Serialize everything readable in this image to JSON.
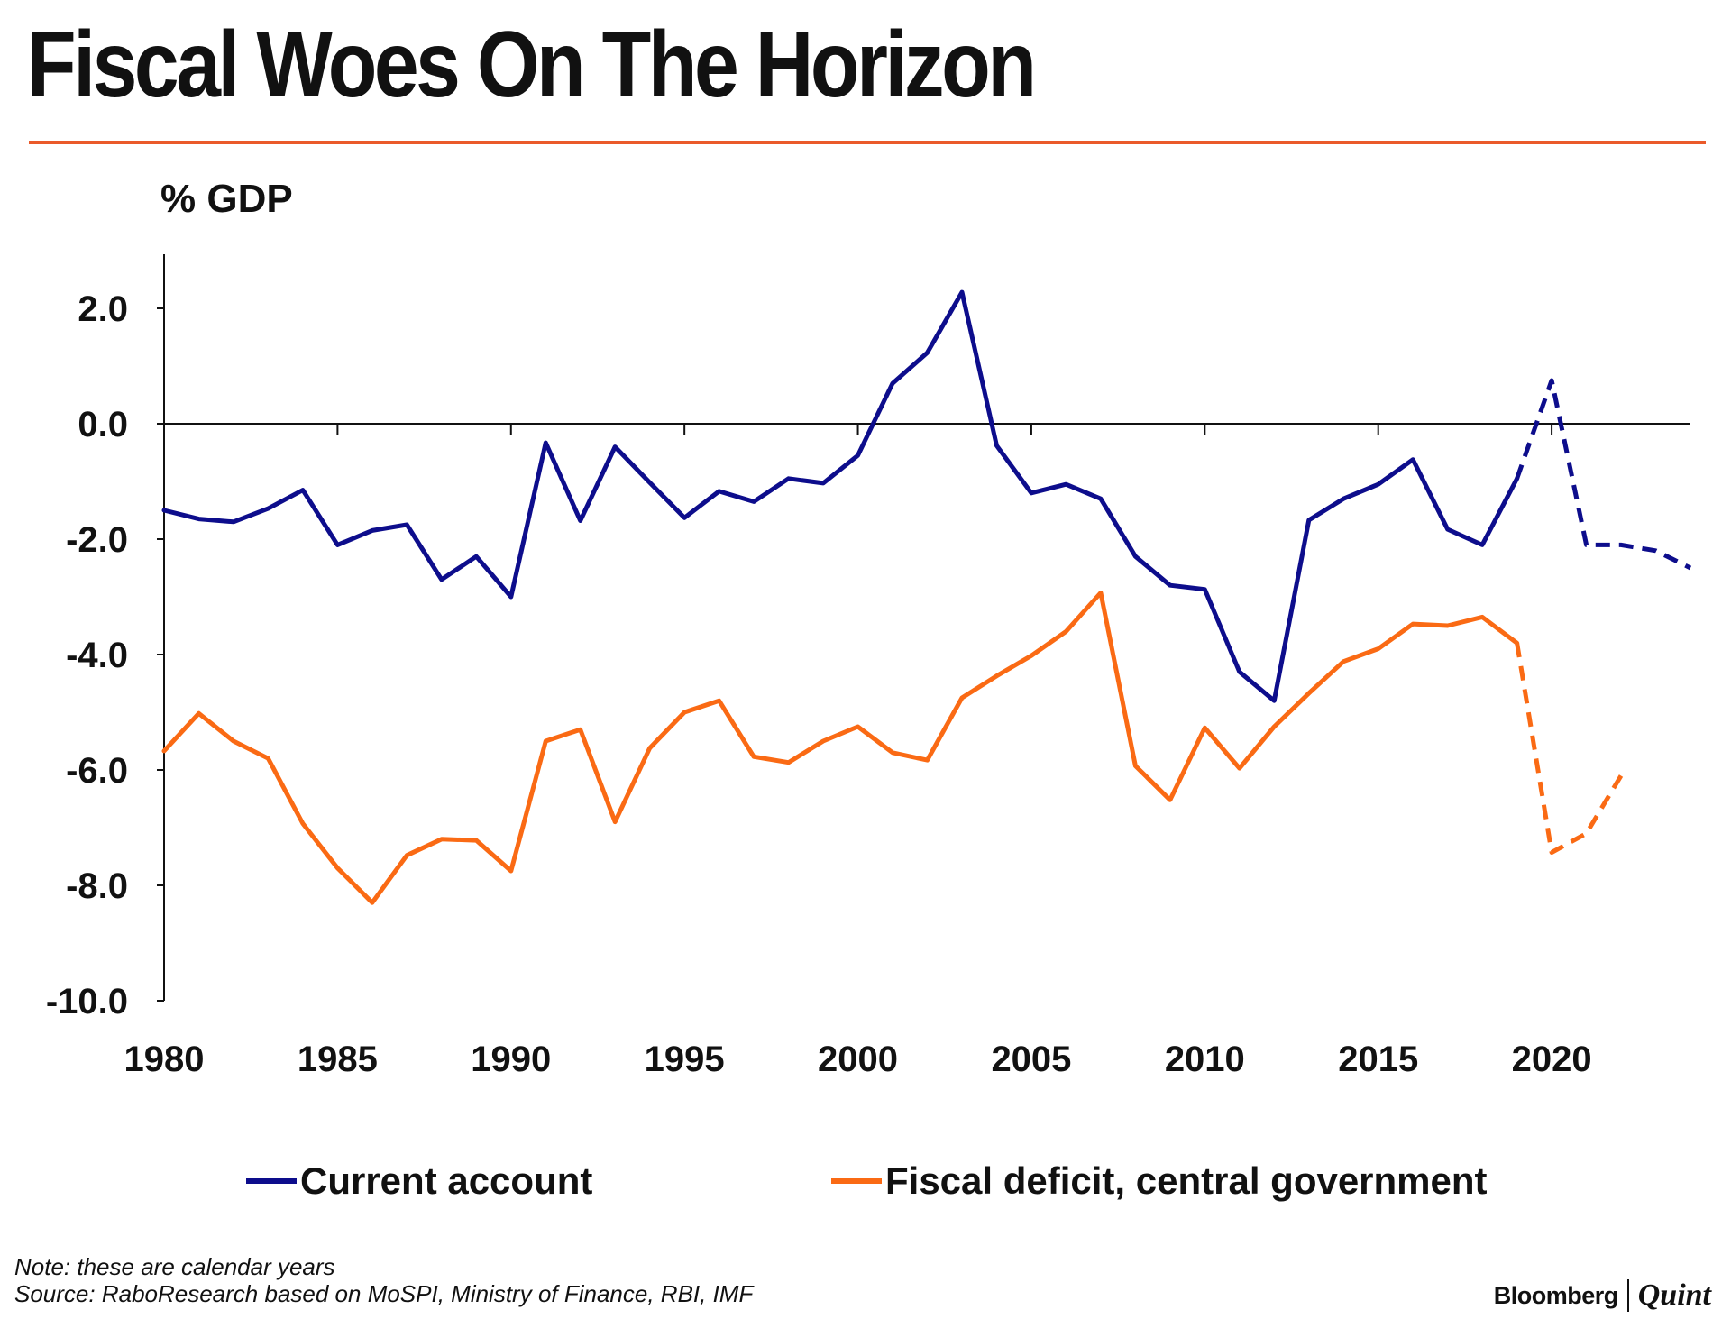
{
  "title": "Fiscal Woes On The Horizon",
  "colors": {
    "accent_rule": "#ea5a2a",
    "current_account": "#0d0d8c",
    "fiscal_deficit": "#fa6a14",
    "axis": "#111111"
  },
  "chart_data": {
    "type": "line",
    "title": "Fiscal Woes On The Horizon",
    "ylabel": "% GDP",
    "xlabel": "",
    "ylim": [
      -10.0,
      3.0
    ],
    "xlim": [
      1980,
      2024
    ],
    "yticks": [
      "2.0",
      "0.0",
      "-2.0",
      "-4.0",
      "-6.0",
      "-8.0",
      "-10.0"
    ],
    "ytick_values": [
      2,
      0,
      -2,
      -4,
      -6,
      -8,
      -10
    ],
    "xticks": [
      "1980",
      "1985",
      "1990",
      "1995",
      "2000",
      "2005",
      "2010",
      "2015",
      "2020"
    ],
    "xtick_values": [
      1980,
      1985,
      1990,
      1995,
      2000,
      2005,
      2010,
      2015,
      2020
    ],
    "grid": false,
    "legend_position": "bottom",
    "series": [
      {
        "name": "Current account",
        "color": "#0d0d8c",
        "actual": {
          "x": [
            1980,
            1981,
            1982,
            1983,
            1984,
            1985,
            1986,
            1987,
            1988,
            1989,
            1990,
            1991,
            1992,
            1993,
            1994,
            1995,
            1996,
            1997,
            1998,
            1999,
            2000,
            2001,
            2002,
            2003,
            2004,
            2005,
            2006,
            2007,
            2008,
            2009,
            2010,
            2011,
            2012,
            2013,
            2014,
            2015,
            2016,
            2017,
            2018,
            2019
          ],
          "y": [
            -1.5,
            -1.65,
            -1.7,
            -1.47,
            -1.15,
            -2.1,
            -1.85,
            -1.75,
            -2.7,
            -2.3,
            -3.0,
            -0.33,
            -1.68,
            -0.4,
            -1.02,
            -1.63,
            -1.17,
            -1.35,
            -0.95,
            -1.03,
            -0.55,
            0.7,
            1.23,
            2.28,
            -0.38,
            -1.2,
            -1.05,
            -1.3,
            -2.3,
            -2.8,
            -2.87,
            -4.3,
            -4.8,
            -1.67,
            -1.3,
            -1.05,
            -0.62,
            -1.83,
            -2.1,
            -0.95
          ]
        },
        "projected": {
          "x": [
            2019,
            2020,
            2021,
            2022,
            2023,
            2024
          ],
          "y": [
            -0.95,
            0.75,
            -2.1,
            -2.1,
            -2.2,
            -2.5
          ]
        }
      },
      {
        "name": "Fiscal deficit, central government",
        "color": "#fa6a14",
        "actual": {
          "x": [
            1980,
            1981,
            1982,
            1983,
            1984,
            1985,
            1986,
            1987,
            1988,
            1989,
            1990,
            1991,
            1992,
            1993,
            1994,
            1995,
            1996,
            1997,
            1998,
            1999,
            2000,
            2001,
            2002,
            2003,
            2004,
            2005,
            2006,
            2007,
            2008,
            2009,
            2010,
            2011,
            2012,
            2013,
            2014,
            2015,
            2016,
            2017,
            2018,
            2019
          ],
          "y": [
            -5.67,
            -5.02,
            -5.5,
            -5.8,
            -6.93,
            -7.7,
            -8.3,
            -7.48,
            -7.2,
            -7.22,
            -7.75,
            -5.5,
            -5.3,
            -6.9,
            -5.62,
            -5.0,
            -4.8,
            -5.77,
            -5.87,
            -5.5,
            -5.25,
            -5.7,
            -5.83,
            -4.75,
            -4.37,
            -4.02,
            -3.6,
            -2.93,
            -5.93,
            -6.52,
            -5.27,
            -5.97,
            -5.25,
            -4.67,
            -4.12,
            -3.9,
            -3.47,
            -3.5,
            -3.35,
            -3.8
          ]
        },
        "projected": {
          "x": [
            2019,
            2020,
            2021,
            2022
          ],
          "y": [
            -3.8,
            -7.43,
            -7.1,
            -6.1
          ]
        }
      }
    ]
  },
  "legend": {
    "current_account": "Current account",
    "fiscal_deficit": "Fiscal deficit, central government"
  },
  "footer": {
    "note": "Note: these are calendar years",
    "source": "Source: RaboResearch based on MoSPI, Ministry of Finance, RBI, IMF",
    "brand_primary": "Bloomberg",
    "brand_secondary": "Quint"
  }
}
